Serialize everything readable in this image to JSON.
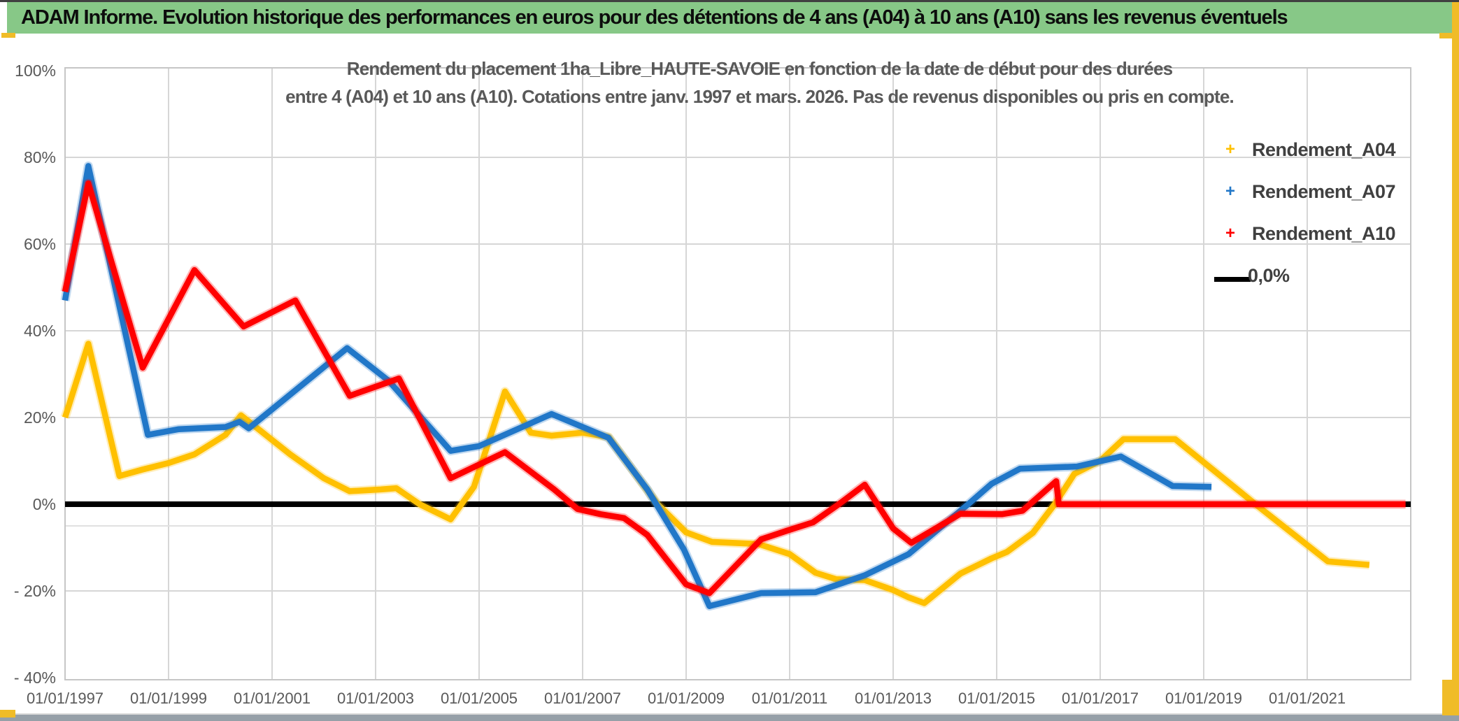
{
  "header": {
    "title": "ADAM Informe. Evolution historique des performances en euros pour des détentions de 4 ans (A04) à 10 ans (A10) sans les revenus éventuels",
    "bg_color": "#87C887"
  },
  "chrome": {
    "gold_accent": "#F0BC28",
    "top_line": "#404040",
    "bottom_band": "#96A0A8"
  },
  "chart_data": {
    "type": "line",
    "title_lines": [
      "Rendement du placement 1ha_Libre_HAUTE-SAVOIE en fonction de la date de début pour des durées",
      "entre 4 (A04) et 10 ans (A10). Cotations entre janv. 1997 et mars. 2026. Pas de revenus disponibles ou pris en compte."
    ],
    "grid": true,
    "x_axis": {
      "tick_years": [
        1997,
        1999,
        2001,
        2003,
        2005,
        2007,
        2009,
        2011,
        2013,
        2015,
        2017,
        2019,
        2021
      ],
      "tick_labels": [
        "01/01/1997",
        "01/01/1999",
        "01/01/2001",
        "01/01/2003",
        "01/01/2005",
        "01/01/2007",
        "01/01/2009",
        "01/01/2011",
        "01/01/2013",
        "01/01/2015",
        "01/01/2017",
        "01/01/2019",
        "01/01/2021"
      ],
      "range": [
        1997,
        2023
      ]
    },
    "y_axis": {
      "tick_values": [
        100,
        80,
        60,
        40,
        20,
        0,
        -20,
        -40
      ],
      "tick_labels": [
        "100%",
        "80%",
        "60%",
        "40%",
        "20%",
        "0%",
        "- 20%",
        "- 40%"
      ],
      "range": [
        -40,
        100
      ],
      "minor_line_value": -5,
      "unit": "percent"
    },
    "legend": {
      "position": "top-right",
      "items": [
        {
          "label": "Rendement_A04",
          "marker": "plus",
          "color": "#FFC000"
        },
        {
          "label": "Rendement_A07",
          "marker": "plus",
          "color": "#2177C8"
        },
        {
          "label": "Rendement_A10",
          "marker": "plus",
          "color": "#FF0000"
        },
        {
          "label": "0,0%",
          "marker": "line",
          "color": "#000000"
        }
      ]
    },
    "series": [
      {
        "name": "0,0%",
        "color": "#000000",
        "width": 8,
        "halo": false,
        "points": [
          [
            1997.0,
            0
          ],
          [
            2023.0,
            0
          ]
        ]
      },
      {
        "name": "Rendement_A04",
        "color": "#FFC000",
        "width": 8.5,
        "halo": true,
        "points": [
          [
            1997.0,
            20
          ],
          [
            1997.45,
            37
          ],
          [
            1998.05,
            6.5
          ],
          [
            1998.5,
            8
          ],
          [
            1999.0,
            9.5
          ],
          [
            1999.5,
            11.5
          ],
          [
            2000.1,
            16
          ],
          [
            2000.4,
            20.5
          ],
          [
            2001.35,
            11.5
          ],
          [
            2002.0,
            6
          ],
          [
            2002.5,
            3
          ],
          [
            2003.1,
            3.4
          ],
          [
            2003.4,
            3.7
          ],
          [
            2003.85,
            0
          ],
          [
            2004.45,
            -3.5
          ],
          [
            2004.9,
            4
          ],
          [
            2005.5,
            26
          ],
          [
            2006.0,
            16.5
          ],
          [
            2006.4,
            15.8
          ],
          [
            2007.0,
            16.5
          ],
          [
            2007.5,
            15.5
          ],
          [
            2008.45,
            0
          ],
          [
            2009.0,
            -6.5
          ],
          [
            2009.5,
            -8.7
          ],
          [
            2010.4,
            -9.2
          ],
          [
            2011.0,
            -11.5
          ],
          [
            2011.5,
            -15.8
          ],
          [
            2011.9,
            -17.3
          ],
          [
            2012.45,
            -17.5
          ],
          [
            2013.0,
            -19.8
          ],
          [
            2013.3,
            -21.5
          ],
          [
            2013.6,
            -22.8
          ],
          [
            2014.3,
            -16
          ],
          [
            2014.9,
            -12.5
          ],
          [
            2015.2,
            -11
          ],
          [
            2015.7,
            -6.6
          ],
          [
            2016.12,
            0
          ],
          [
            2016.5,
            7
          ],
          [
            2017.0,
            10
          ],
          [
            2017.45,
            15
          ],
          [
            2018.45,
            15
          ],
          [
            2020.0,
            0
          ],
          [
            2021.4,
            -13.2
          ],
          [
            2022.2,
            -14
          ]
        ]
      },
      {
        "name": "Rendement_A07",
        "color": "#2177C8",
        "width": 8.5,
        "halo": true,
        "points": [
          [
            1997.0,
            47
          ],
          [
            1997.45,
            78
          ],
          [
            1998.6,
            16
          ],
          [
            1999.2,
            17.3
          ],
          [
            2000.1,
            17.8
          ],
          [
            2000.37,
            19
          ],
          [
            2000.55,
            17.5
          ],
          [
            2002.45,
            36
          ],
          [
            2003.25,
            28.5
          ],
          [
            2004.45,
            12.3
          ],
          [
            2005.0,
            13.4
          ],
          [
            2006.4,
            20.8
          ],
          [
            2007.5,
            15.3
          ],
          [
            2008.25,
            3.4
          ],
          [
            2008.96,
            -10.5
          ],
          [
            2009.45,
            -23.5
          ],
          [
            2010.45,
            -20.5
          ],
          [
            2011.5,
            -20.3
          ],
          [
            2012.45,
            -16.4
          ],
          [
            2013.3,
            -11.5
          ],
          [
            2014.45,
            0
          ],
          [
            2014.9,
            4.7
          ],
          [
            2015.45,
            8.2
          ],
          [
            2016.55,
            8.7
          ],
          [
            2017.4,
            11
          ],
          [
            2018.4,
            4.2
          ],
          [
            2019.15,
            4
          ]
        ]
      },
      {
        "name": "Rendement_A10",
        "color": "#FF0000",
        "width": 8.5,
        "halo": true,
        "points": [
          [
            1997.0,
            49
          ],
          [
            1997.45,
            74
          ],
          [
            1998.5,
            31.5
          ],
          [
            1999.5,
            54
          ],
          [
            2000.45,
            41
          ],
          [
            2001.45,
            47
          ],
          [
            2002.5,
            25
          ],
          [
            2003.45,
            29
          ],
          [
            2004.45,
            6
          ],
          [
            2005.5,
            12
          ],
          [
            2006.45,
            3.4
          ],
          [
            2006.9,
            -1.1
          ],
          [
            2007.35,
            -2.3
          ],
          [
            2007.8,
            -3.2
          ],
          [
            2008.25,
            -7.1
          ],
          [
            2009.0,
            -18.5
          ],
          [
            2009.45,
            -20.5
          ],
          [
            2010.45,
            -8.1
          ],
          [
            2010.95,
            -6.1
          ],
          [
            2011.45,
            -4.2
          ],
          [
            2011.95,
            0
          ],
          [
            2012.45,
            4.5
          ],
          [
            2013.0,
            -5.6
          ],
          [
            2013.35,
            -8.9
          ],
          [
            2014.3,
            -2.2
          ],
          [
            2015.1,
            -2.3
          ],
          [
            2015.5,
            -1.5
          ],
          [
            2016.15,
            5.3
          ],
          [
            2016.2,
            0
          ],
          [
            2022.9,
            0
          ]
        ]
      }
    ],
    "colors": {
      "gridline": "#D6D6D6",
      "minor_gridline": "#E1E1E1",
      "plot_border": "#C6C6C6",
      "tick_text": "#595959"
    }
  }
}
